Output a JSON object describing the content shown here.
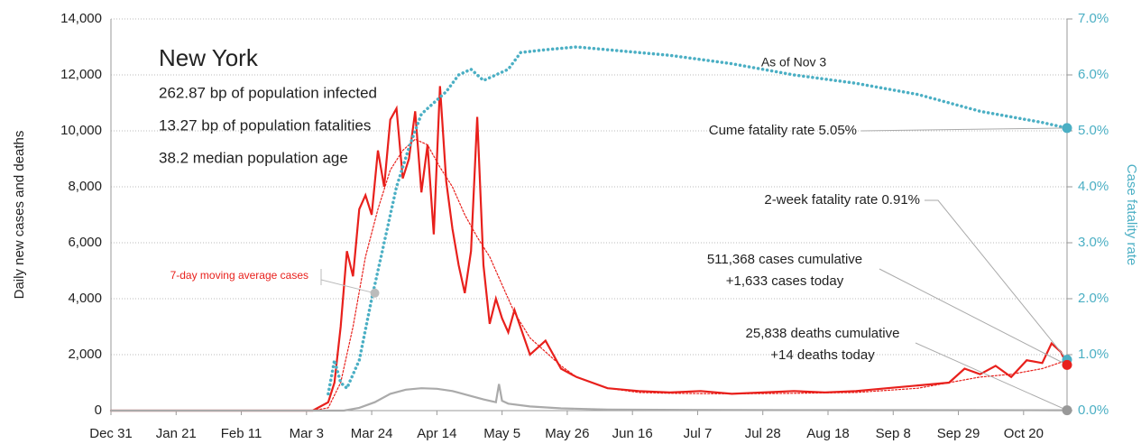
{
  "chart_data": {
    "type": "line",
    "info": {
      "title": "New York",
      "lines": [
        "262.87 bp of population infected",
        "13.27 bp of population fatalities",
        "38.2 median population age"
      ]
    },
    "ylabel": "Daily new cases and deaths",
    "y2label": "Case fatality rate",
    "xlim": [
      0,
      308
    ],
    "xticks": [
      {
        "value": 0,
        "label": "Dec 31"
      },
      {
        "value": 21,
        "label": "Jan 21"
      },
      {
        "value": 42,
        "label": "Feb 11"
      },
      {
        "value": 63,
        "label": "Mar 3"
      },
      {
        "value": 84,
        "label": "Mar 24"
      },
      {
        "value": 105,
        "label": "Apr 14"
      },
      {
        "value": 126,
        "label": "May 5"
      },
      {
        "value": 147,
        "label": "May 26"
      },
      {
        "value": 168,
        "label": "Jun 16"
      },
      {
        "value": 189,
        "label": "Jul 7"
      },
      {
        "value": 210,
        "label": "Jul 28"
      },
      {
        "value": 231,
        "label": "Aug 18"
      },
      {
        "value": 252,
        "label": "Sep 8"
      },
      {
        "value": 273,
        "label": "Sep 29"
      },
      {
        "value": 294,
        "label": "Oct 20"
      }
    ],
    "ylim": [
      0,
      14000
    ],
    "yticks": [
      0,
      {
        "value": 2000,
        "label": "2,000"
      },
      {
        "value": 4000,
        "label": "4,000"
      },
      {
        "value": 6000,
        "label": "6,000"
      },
      {
        "value": 8000,
        "label": "8,000"
      },
      {
        "value": 10000,
        "label": "10,000"
      },
      {
        "value": 12000,
        "label": "12,000"
      },
      {
        "value": 14000,
        "label": "14,000"
      }
    ],
    "y2lim": [
      0,
      7
    ],
    "y2ticks": [
      {
        "value": 0,
        "label": "0.0%"
      },
      {
        "value": 1,
        "label": "1.0%"
      },
      {
        "value": 2,
        "label": "2.0%"
      },
      {
        "value": 3,
        "label": "3.0%"
      },
      {
        "value": 4,
        "label": "4.0%"
      },
      {
        "value": 5,
        "label": "5.0%"
      },
      {
        "value": 6,
        "label": "6.0%"
      },
      {
        "value": 7,
        "label": "7.0%"
      }
    ],
    "grid": true,
    "series": [
      {
        "name": "Daily new cases",
        "color": "#e8201c",
        "style": "solid",
        "x": [
          0,
          60,
          65,
          70,
          72,
          74,
          76,
          78,
          80,
          82,
          84,
          86,
          88,
          90,
          92,
          94,
          96,
          98,
          100,
          102,
          104,
          106,
          108,
          110,
          112,
          114,
          116,
          118,
          120,
          122,
          124,
          126,
          128,
          130,
          135,
          140,
          145,
          150,
          160,
          170,
          180,
          190,
          200,
          210,
          220,
          230,
          240,
          250,
          260,
          270,
          275,
          280,
          285,
          290,
          295,
          300,
          303,
          306,
          308
        ],
        "values": [
          0,
          0,
          0,
          300,
          1000,
          3000,
          5700,
          4800,
          7200,
          7700,
          7000,
          9300,
          8000,
          10400,
          10800,
          8300,
          9000,
          10700,
          7800,
          9500,
          6300,
          11600,
          8200,
          6500,
          5200,
          4200,
          5700,
          10500,
          5200,
          3100,
          4000,
          3300,
          2800,
          3600,
          2000,
          2500,
          1500,
          1200,
          800,
          700,
          650,
          700,
          600,
          650,
          700,
          650,
          700,
          800,
          900,
          1000,
          1500,
          1300,
          1600,
          1200,
          1800,
          1700,
          2400,
          2100,
          1633
        ]
      },
      {
        "name": "7-day moving average cases",
        "color": "#e8201c",
        "style": "dotted",
        "x": [
          0,
          65,
          70,
          74,
          78,
          82,
          86,
          90,
          94,
          98,
          102,
          106,
          110,
          114,
          118,
          122,
          126,
          130,
          135,
          140,
          145,
          150,
          160,
          170,
          180,
          200,
          220,
          240,
          260,
          270,
          280,
          290,
          300,
          308
        ],
        "values": [
          0,
          0,
          100,
          1000,
          3000,
          5500,
          7200,
          8600,
          9300,
          9700,
          9500,
          8700,
          8000,
          7000,
          6200,
          5500,
          4500,
          3500,
          2600,
          2100,
          1600,
          1200,
          800,
          650,
          620,
          600,
          620,
          650,
          800,
          1000,
          1200,
          1300,
          1500,
          1800
        ]
      },
      {
        "name": "Daily new deaths",
        "color": "#aaaaaa",
        "style": "solid",
        "x": [
          0,
          75,
          80,
          85,
          90,
          95,
          100,
          105,
          110,
          115,
          120,
          124,
          125,
          126,
          128,
          135,
          145,
          160,
          200,
          250,
          308
        ],
        "values": [
          0,
          0,
          100,
          300,
          600,
          750,
          800,
          780,
          700,
          550,
          400,
          300,
          950,
          350,
          250,
          150,
          80,
          40,
          20,
          15,
          14
        ]
      },
      {
        "name": "Case fatality rate",
        "color": "#4bafc4",
        "style": "dotted",
        "axis": "y2",
        "x": [
          70,
          72,
          74,
          76,
          80,
          84,
          88,
          92,
          96,
          100,
          104,
          108,
          112,
          116,
          120,
          124,
          128,
          132,
          140,
          150,
          160,
          180,
          200,
          220,
          240,
          260,
          280,
          300,
          308
        ],
        "values": [
          0.3,
          0.9,
          0.5,
          0.4,
          0.9,
          2.0,
          3.0,
          4.0,
          4.7,
          5.3,
          5.5,
          5.7,
          6.0,
          6.1,
          5.9,
          6.0,
          6.1,
          6.4,
          6.45,
          6.5,
          6.45,
          6.35,
          6.2,
          6.0,
          5.85,
          5.65,
          5.35,
          5.15,
          5.05
        ]
      }
    ],
    "annotations": [
      {
        "text": "As of Nov 3"
      },
      {
        "text": "7-day moving average cases",
        "x": 85,
        "value": 4200,
        "color": "#e8201c"
      }
    ],
    "markers": [
      {
        "label": [
          "Cume fatality rate 5.05%"
        ],
        "value": 5.05,
        "axis": "y2",
        "color": "#4bafc4"
      },
      {
        "label": [
          "2-week fatality rate 0.91%"
        ],
        "value": 0.91,
        "axis": "y2",
        "color": "#4bafc4"
      },
      {
        "label": [
          "511,368 cases cumulative",
          "+1,633 cases today"
        ],
        "value": 1633,
        "color": "#e8201c"
      },
      {
        "label": [
          "25,838 deaths cumulative",
          "+14 deaths today"
        ],
        "value": 14,
        "color": "#999999"
      }
    ]
  }
}
